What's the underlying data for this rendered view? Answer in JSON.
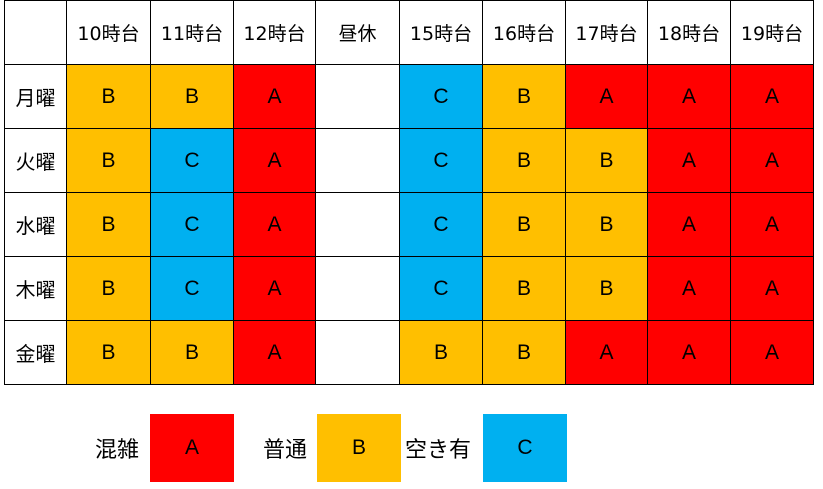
{
  "table": {
    "corner": "",
    "columns": [
      "10時台",
      "11時台",
      "12時台",
      "昼休",
      "15時台",
      "16時台",
      "17時台",
      "18時台",
      "19時台"
    ],
    "rows": [
      {
        "day": "月曜",
        "cells": [
          "B",
          "B",
          "A",
          "",
          "C",
          "B",
          "A",
          "A",
          "A"
        ]
      },
      {
        "day": "火曜",
        "cells": [
          "B",
          "C",
          "A",
          "",
          "C",
          "B",
          "B",
          "A",
          "A"
        ]
      },
      {
        "day": "水曜",
        "cells": [
          "B",
          "C",
          "A",
          "",
          "C",
          "B",
          "B",
          "A",
          "A"
        ]
      },
      {
        "day": "木曜",
        "cells": [
          "B",
          "C",
          "A",
          "",
          "C",
          "B",
          "B",
          "A",
          "A"
        ]
      },
      {
        "day": "金曜",
        "cells": [
          "B",
          "B",
          "A",
          "",
          "B",
          "B",
          "A",
          "A",
          "A"
        ]
      }
    ]
  },
  "legend": [
    {
      "label": "混雑",
      "code": "A",
      "color": "#ff0000"
    },
    {
      "label": "普通",
      "code": "B",
      "color": "#ffbf00"
    },
    {
      "label": "空き有",
      "code": "C",
      "color": "#00b0f0"
    }
  ],
  "colors": {
    "A": "#ff0000",
    "B": "#ffbf00",
    "C": "#00b0f0",
    "empty": "#ffffff"
  }
}
